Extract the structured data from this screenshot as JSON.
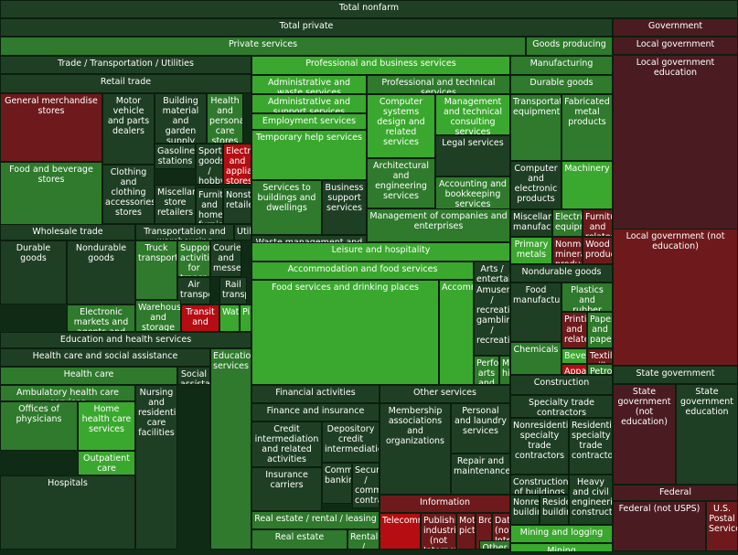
{
  "chart_data": {
    "type": "treemap",
    "title": "",
    "cells": [
      {
        "label": "Total nonfarm",
        "tone": "dark"
      },
      {
        "label": "Total private",
        "tone": "dark"
      },
      {
        "label": "Government",
        "tone": "maroon"
      },
      {
        "label": "Private services",
        "tone": "mid"
      },
      {
        "label": "Goods producing",
        "tone": "mid"
      },
      {
        "label": "Local government",
        "tone": "maroon"
      },
      {
        "label": "Trade / Transportation / Utilities",
        "tone": "dark"
      },
      {
        "label": "Professional and business services",
        "tone": "bright"
      },
      {
        "label": "Manufacturing",
        "tone": "mid"
      },
      {
        "label": "Local government education",
        "tone": "maroon"
      },
      {
        "label": "Retail trade",
        "tone": "dark"
      },
      {
        "label": "Administrative and waste services",
        "tone": "bright"
      },
      {
        "label": "Professional and technical services",
        "tone": "mid"
      },
      {
        "label": "Durable goods",
        "tone": "mid"
      },
      {
        "label": "General merchandise stores",
        "tone": "darkred"
      },
      {
        "label": "Motor vehicle and parts dealers",
        "tone": "dark"
      },
      {
        "label": "Building material and garden supply stores",
        "tone": "dark"
      },
      {
        "label": "Health and personal care stores",
        "tone": "mid"
      },
      {
        "label": "Administrative and support services",
        "tone": "bright"
      },
      {
        "label": "Employment services",
        "tone": "bright"
      },
      {
        "label": "Temporary help services",
        "tone": "bright"
      },
      {
        "label": "Computer systems design and related services",
        "tone": "bright"
      },
      {
        "label": "Management and technical consulting services",
        "tone": "bright"
      },
      {
        "label": "Legal services",
        "tone": "dark"
      },
      {
        "label": "Transportation equipment",
        "tone": "mid"
      },
      {
        "label": "Fabricated metal products",
        "tone": "mid"
      },
      {
        "label": "Gasoline stations",
        "tone": "dark"
      },
      {
        "label": "Sporting goods / hobby",
        "tone": "dark"
      },
      {
        "label": "Electronics and appliance stores",
        "tone": "red"
      },
      {
        "label": "Food and beverage stores",
        "tone": "mid"
      },
      {
        "label": "Clothing and clothing accessories stores",
        "tone": "dark"
      },
      {
        "label": "Miscellaneous store retailers",
        "tone": "dark"
      },
      {
        "label": "Furniture and home furnishings",
        "tone": "dark"
      },
      {
        "label": "Nonstore retailers",
        "tone": "dark"
      },
      {
        "label": "Services to buildings and dwellings",
        "tone": "mid"
      },
      {
        "label": "Business support services",
        "tone": "dark"
      },
      {
        "label": "Architectural and engineering services",
        "tone": "mid"
      },
      {
        "label": "Accounting and bookkeeping services",
        "tone": "mid"
      },
      {
        "label": "Computer and electronic products",
        "tone": "dark"
      },
      {
        "label": "Machinery",
        "tone": "bright"
      },
      {
        "label": "Miscellaneous manufacturing",
        "tone": "dark"
      },
      {
        "label": "Electrical equipment",
        "tone": "mid"
      },
      {
        "label": "Furniture and related",
        "tone": "darkred"
      },
      {
        "label": "Management of companies and enterprises",
        "tone": "mid"
      },
      {
        "label": "Waste management and",
        "tone": "dark"
      },
      {
        "label": "Wholesale trade",
        "tone": "dark"
      },
      {
        "label": "Transportation and warehousing",
        "tone": "dark"
      },
      {
        "label": "Utilities",
        "tone": "dark"
      },
      {
        "label": "Durable goods",
        "tone": "dark"
      },
      {
        "label": "Nondurable goods",
        "tone": "dark"
      },
      {
        "label": "Electronic markets and agents and brokers",
        "tone": "mid"
      },
      {
        "label": "Truck transportation",
        "tone": "mid"
      },
      {
        "label": "Support activities for transportation",
        "tone": "mid"
      },
      {
        "label": "Couriers and messengers",
        "tone": "dark"
      },
      {
        "label": "Air transportation",
        "tone": "dark"
      },
      {
        "label": "Rail transportation",
        "tone": "dark"
      },
      {
        "label": "Warehousing and storage",
        "tone": "mid"
      },
      {
        "label": "Transit and",
        "tone": "red"
      },
      {
        "label": "Water",
        "tone": "bright"
      },
      {
        "label": "Pipeline",
        "tone": "bright"
      },
      {
        "label": "Primary metals",
        "tone": "bright"
      },
      {
        "label": "Nonmetallic mineral products",
        "tone": "darkred"
      },
      {
        "label": "Wood products",
        "tone": "darkred"
      },
      {
        "label": "Nondurable goods",
        "tone": "dark"
      },
      {
        "label": "Food manufacturing",
        "tone": "dark"
      },
      {
        "label": "Plastics and rubber products",
        "tone": "mid"
      },
      {
        "label": "Printing and related",
        "tone": "darkred"
      },
      {
        "label": "Paper and paper",
        "tone": "mid"
      },
      {
        "label": "Chemicals",
        "tone": "mid"
      },
      {
        "label": "Beverages",
        "tone": "bright"
      },
      {
        "label": "Textile mills",
        "tone": "darkred"
      },
      {
        "label": "Apparel",
        "tone": "red"
      },
      {
        "label": "Petroleum",
        "tone": "mid"
      },
      {
        "label": "Leisure and hospitality",
        "tone": "bright"
      },
      {
        "label": "Accommodation and food services",
        "tone": "bright"
      },
      {
        "label": "Food services and drinking places",
        "tone": "bright"
      },
      {
        "label": "Accommodation",
        "tone": "bright"
      },
      {
        "label": "Arts / entertainment",
        "tone": "dark"
      },
      {
        "label": "Amusement / recreation gambling / recreation",
        "tone": "dark"
      },
      {
        "label": "Performing arts and",
        "tone": "mid"
      },
      {
        "label": "Museums his",
        "tone": "mid"
      },
      {
        "label": "Education and health services",
        "tone": "dark"
      },
      {
        "label": "Health care and social assistance",
        "tone": "dark"
      },
      {
        "label": "Educational services",
        "tone": "mid"
      },
      {
        "label": "Health care",
        "tone": "mid"
      },
      {
        "label": "Social assistance",
        "tone": "dark"
      },
      {
        "label": "Ambulatory health care services",
        "tone": "mid"
      },
      {
        "label": "Nursing and residential care facilities",
        "tone": "dark"
      },
      {
        "label": "Offices of physicians",
        "tone": "mid"
      },
      {
        "label": "Home health care services",
        "tone": "bright"
      },
      {
        "label": "Outpatient care centers",
        "tone": "bright"
      },
      {
        "label": "Hospitals",
        "tone": "dark"
      },
      {
        "label": "Financial activities",
        "tone": "dark"
      },
      {
        "label": "Finance and insurance",
        "tone": "dark"
      },
      {
        "label": "Credit intermediation and related activities",
        "tone": "dark"
      },
      {
        "label": "Depository credit intermediation",
        "tone": "dark"
      },
      {
        "label": "Insurance carriers",
        "tone": "dark"
      },
      {
        "label": "Commercial banking",
        "tone": "dark"
      },
      {
        "label": "Securities / commodity contracts",
        "tone": "dark"
      },
      {
        "label": "Real estate / rental / leasing",
        "tone": "mid"
      },
      {
        "label": "Real estate",
        "tone": "mid"
      },
      {
        "label": "Rental / leasing",
        "tone": "mid"
      },
      {
        "label": "Other services",
        "tone": "dark"
      },
      {
        "label": "Membership associations and organizations",
        "tone": "dark"
      },
      {
        "label": "Personal and laundry services",
        "tone": "dark"
      },
      {
        "label": "Repair and maintenance",
        "tone": "dark"
      },
      {
        "label": "Information",
        "tone": "darkred"
      },
      {
        "label": "Telecommunications",
        "tone": "red"
      },
      {
        "label": "Publishing industries (not Internet)",
        "tone": "darkred"
      },
      {
        "label": "Motion picture",
        "tone": "darkred"
      },
      {
        "label": "Broadcasting",
        "tone": "darkred"
      },
      {
        "label": "Data (not Internet)",
        "tone": "darkred"
      },
      {
        "label": "Other",
        "tone": "mid"
      },
      {
        "label": "Construction",
        "tone": "dark"
      },
      {
        "label": "Specialty trade contractors",
        "tone": "dark"
      },
      {
        "label": "Nonresidential specialty trade contractors",
        "tone": "dark"
      },
      {
        "label": "Residential specialty trade contractors",
        "tone": "dark"
      },
      {
        "label": "Construction of buildings",
        "tone": "dark"
      },
      {
        "label": "Heavy and civil engineering construction",
        "tone": "dark"
      },
      {
        "label": "Nonresidential buildings",
        "tone": "dark"
      },
      {
        "label": "Residential buildings",
        "tone": "dark"
      },
      {
        "label": "Mining and logging",
        "tone": "bright"
      },
      {
        "label": "Mining",
        "tone": "bright"
      },
      {
        "label": "Local government (not education)",
        "tone": "darkred"
      },
      {
        "label": "State government",
        "tone": "dark"
      },
      {
        "label": "State government (not education)",
        "tone": "maroon"
      },
      {
        "label": "State government education",
        "tone": "dark"
      },
      {
        "label": "Federal",
        "tone": "maroon"
      },
      {
        "label": "Federal (not USPS)",
        "tone": "maroon"
      },
      {
        "label": "U.S. Postal Service",
        "tone": "darkred"
      }
    ]
  },
  "colors": {
    "dark": "#1f3f24",
    "mid": "#2f7a2c",
    "bright": "#3aa82e",
    "maroon": "#4a1c21",
    "darkred": "#6e1a1c",
    "red": "#b50d12",
    "border": "#0a1f0e"
  }
}
